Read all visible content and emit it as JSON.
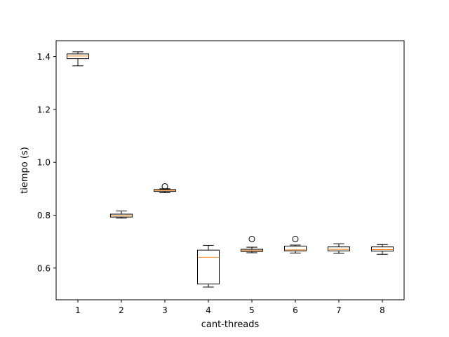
{
  "chart_data": {
    "type": "boxplot",
    "title": "",
    "xlabel": "cant-threads",
    "ylabel": "tiempo (s)",
    "xlim": [
      0.5,
      8.5
    ],
    "ylim": [
      0.48,
      1.46
    ],
    "categories": [
      "1",
      "2",
      "3",
      "4",
      "5",
      "6",
      "7",
      "8"
    ],
    "yticks": [
      0.6,
      0.8,
      1.0,
      1.2,
      1.4
    ],
    "ytick_labels": [
      "0.6",
      "0.8",
      "1.0",
      "1.2",
      "1.4"
    ],
    "grid": false,
    "legend": "none",
    "boxes": [
      {
        "category": "1",
        "whisker_low": 1.365,
        "q1": 1.392,
        "median": 1.402,
        "q3": 1.41,
        "whisker_high": 1.418,
        "outliers": []
      },
      {
        "category": "2",
        "whisker_low": 0.789,
        "q1": 0.793,
        "median": 0.798,
        "q3": 0.804,
        "whisker_high": 0.816,
        "outliers": []
      },
      {
        "category": "3",
        "whisker_low": 0.885,
        "q1": 0.89,
        "median": 0.894,
        "q3": 0.897,
        "whisker_high": 0.9,
        "outliers": [
          0.909
        ]
      },
      {
        "category": "4",
        "whisker_low": 0.528,
        "q1": 0.54,
        "median": 0.641,
        "q3": 0.668,
        "whisker_high": 0.686,
        "outliers": []
      },
      {
        "category": "5",
        "whisker_low": 0.658,
        "q1": 0.663,
        "median": 0.666,
        "q3": 0.671,
        "whisker_high": 0.679,
        "outliers": [
          0.71
        ]
      },
      {
        "category": "6",
        "whisker_low": 0.657,
        "q1": 0.665,
        "median": 0.669,
        "q3": 0.683,
        "whisker_high": 0.687,
        "outliers": [
          0.71
        ]
      },
      {
        "category": "7",
        "whisker_low": 0.656,
        "q1": 0.665,
        "median": 0.671,
        "q3": 0.68,
        "whisker_high": 0.692,
        "outliers": []
      },
      {
        "category": "8",
        "whisker_low": 0.652,
        "q1": 0.664,
        "median": 0.67,
        "q3": 0.68,
        "whisker_high": 0.689,
        "outliers": []
      }
    ],
    "colors": {
      "box": "#000000",
      "median": "#ff7f0e",
      "outlier": "#000000",
      "frame": "#000000"
    }
  }
}
